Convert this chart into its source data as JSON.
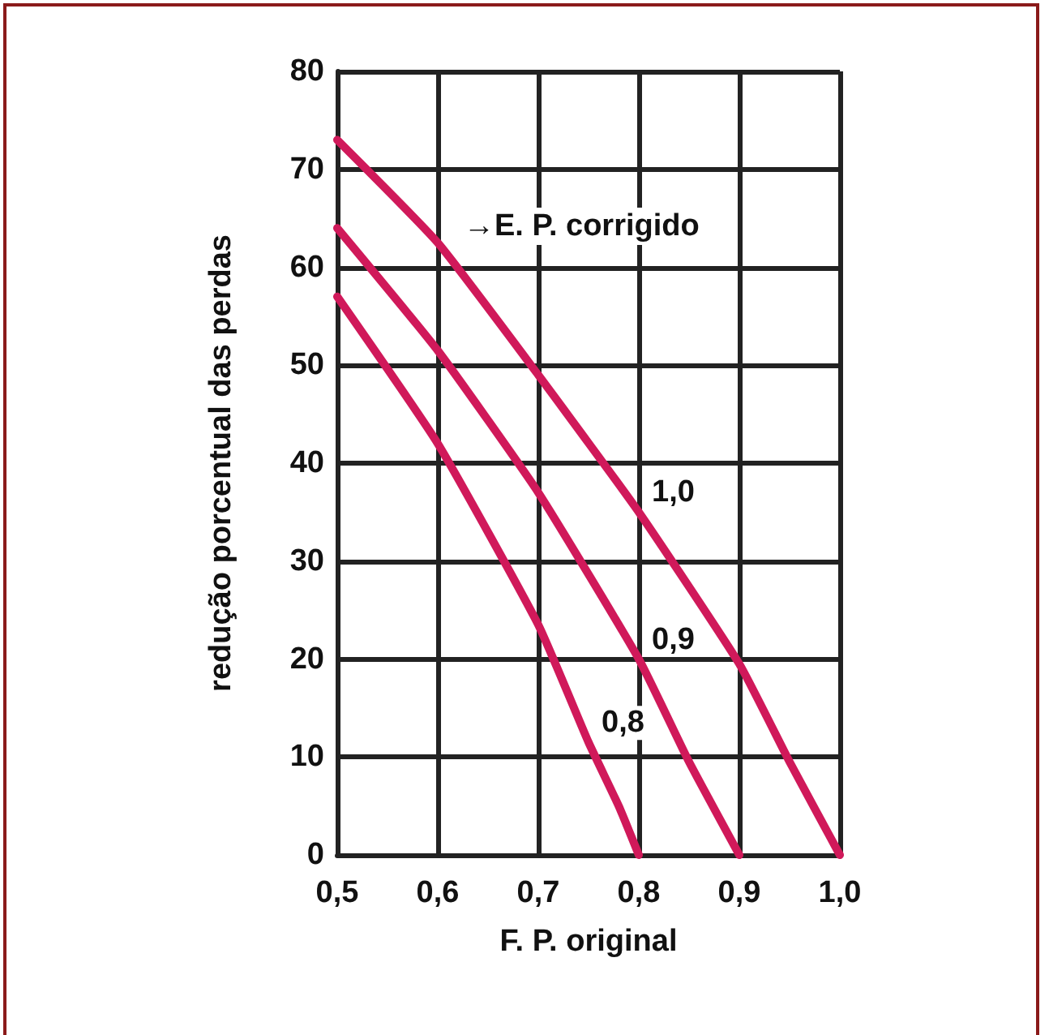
{
  "chart_data": {
    "type": "line",
    "xlabel": "F. P. original",
    "ylabel": "redução porcentual das perdas",
    "annotations": [
      "→E. P. corrigido"
    ],
    "xlim": [
      0.5,
      1.0
    ],
    "xticks": [
      {
        "value": 0.5,
        "label": "0,5"
      },
      {
        "value": 0.6,
        "label": "0,6"
      },
      {
        "value": 0.7,
        "label": "0,7"
      },
      {
        "value": 0.8,
        "label": "0,8"
      },
      {
        "value": 0.9,
        "label": "0,9"
      },
      {
        "value": 1.0,
        "label": "1,0"
      }
    ],
    "ylim": [
      0,
      80
    ],
    "yticks": [
      0,
      10,
      20,
      30,
      40,
      50,
      60,
      70,
      80
    ],
    "grid": true,
    "legend": false,
    "marker": "none",
    "line_style": "solid",
    "series": [
      {
        "name": "1,0",
        "color": "#d0195a",
        "x": [
          0.5,
          0.6,
          0.7,
          0.8,
          0.9,
          0.95,
          1.0
        ],
        "values": [
          73,
          62.5,
          49,
          35,
          19.5,
          9.5,
          0
        ]
      },
      {
        "name": "0,9",
        "color": "#d0195a",
        "x": [
          0.5,
          0.6,
          0.7,
          0.8,
          0.85,
          0.9
        ],
        "values": [
          64,
          51.5,
          37,
          20,
          9.5,
          0
        ]
      },
      {
        "name": "0,8",
        "color": "#d0195a",
        "x": [
          0.5,
          0.6,
          0.7,
          0.75,
          0.78,
          0.8
        ],
        "values": [
          57,
          42,
          23.5,
          11.5,
          5,
          0
        ]
      }
    ]
  }
}
